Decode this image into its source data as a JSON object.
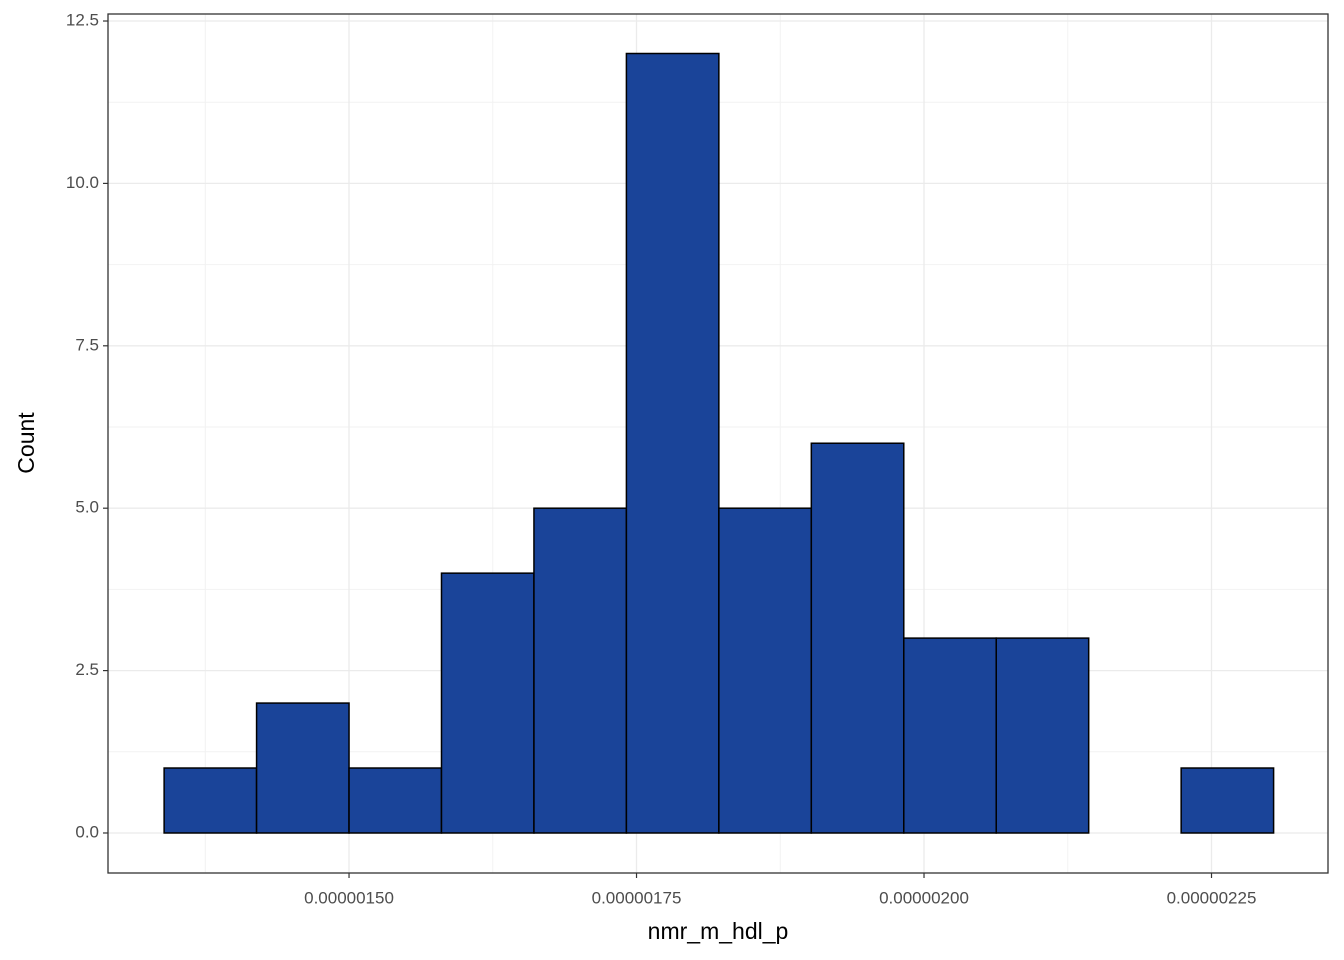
{
  "chart_data": {
    "type": "histogram",
    "x_label": "nmr_m_hdl_p",
    "y_label": "Count",
    "bins": [
      1.3392e-06,
      1.4196e-06,
      1.5e-06,
      1.5804e-06,
      1.6608e-06,
      1.7412e-06,
      1.8216e-06,
      1.902e-06,
      1.9824e-06,
      2.0628e-06,
      2.1432e-06,
      2.2236e-06,
      2.304e-06
    ],
    "values": [
      1,
      2,
      1,
      4,
      5,
      12,
      5,
      6,
      3,
      3,
      0,
      1
    ],
    "color": "#1a4499",
    "edge_color": "#000000",
    "xlim": [
      1.2904e-06,
      2.3513e-06
    ],
    "xticks": [
      {
        "value": 1.5e-06,
        "label": "0.00000150"
      },
      {
        "value": 1.75e-06,
        "label": "0.00000175"
      },
      {
        "value": 2e-06,
        "label": "0.00000200"
      },
      {
        "value": 2.25e-06,
        "label": "0.00000225"
      }
    ],
    "ylim": [
      -0.616,
      12.608
    ],
    "yticks": [
      {
        "value": 0,
        "label": "0.0"
      },
      2.5,
      {
        "value": 5,
        "label": "5.0"
      },
      7.5,
      {
        "value": 10,
        "label": "10.0"
      },
      12.5
    ],
    "grid": true
  }
}
